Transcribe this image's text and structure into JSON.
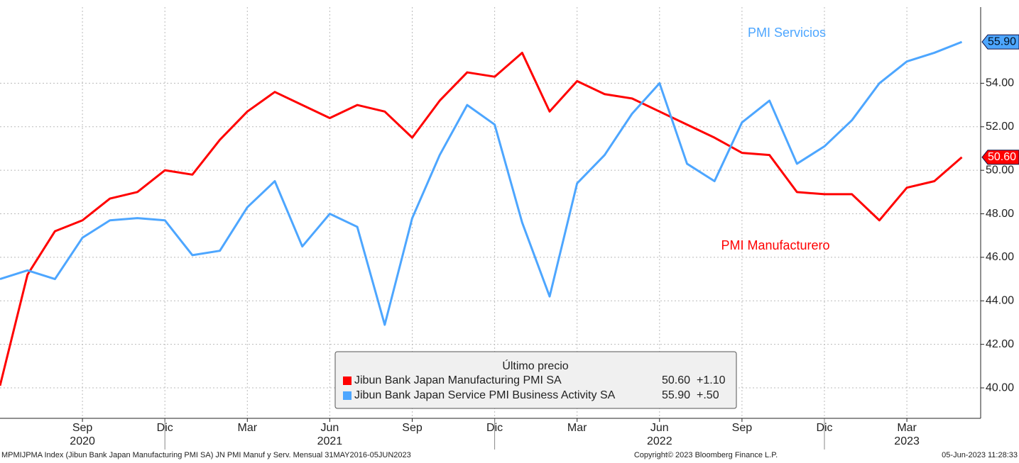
{
  "chart_data": {
    "type": "line",
    "categories": [
      null,
      null,
      null,
      "Sep",
      null,
      null,
      "Dic",
      null,
      null,
      "Mar",
      null,
      null,
      "Jun",
      null,
      null,
      "Sep",
      null,
      null,
      "Dic",
      null,
      null,
      "Mar",
      null,
      null,
      "Jun",
      null,
      null,
      "Sep",
      null,
      null,
      "Dic",
      null,
      null,
      "Mar",
      null,
      null
    ],
    "category_years": [
      null,
      null,
      null,
      "2020",
      null,
      null,
      null,
      null,
      null,
      null,
      null,
      null,
      "2021",
      null,
      null,
      null,
      null,
      null,
      null,
      null,
      null,
      null,
      null,
      null,
      "2022",
      null,
      null,
      null,
      null,
      null,
      null,
      null,
      null,
      "2023",
      null,
      null
    ],
    "series": [
      {
        "name": "Jibun Bank Japan Manufacturing PMI SA",
        "color": "#ff0000",
        "annotation": "PMI Manufacturero",
        "last_label": "50.60",
        "change": "+1.10",
        "values": [
          40.1,
          45.2,
          47.2,
          47.7,
          48.7,
          49.0,
          50.0,
          49.8,
          51.4,
          52.7,
          53.6,
          53.0,
          52.4,
          53.0,
          52.7,
          51.5,
          53.2,
          54.5,
          54.3,
          55.4,
          52.7,
          54.1,
          53.5,
          53.3,
          52.7,
          52.1,
          51.5,
          50.8,
          50.7,
          49.0,
          48.9,
          48.9,
          47.7,
          49.2,
          49.5,
          50.6
        ]
      },
      {
        "name": "Jibun Bank Japan Service PMI Business Activity SA",
        "color": "#4da6ff",
        "annotation": "PMI Servicios",
        "last_label": "55.90",
        "change": "+.50",
        "values": [
          45.0,
          45.4,
          45.0,
          46.9,
          47.7,
          47.8,
          47.7,
          46.1,
          46.3,
          48.3,
          49.5,
          46.5,
          48.0,
          47.4,
          42.9,
          47.8,
          50.7,
          53.0,
          52.1,
          47.6,
          44.2,
          49.4,
          50.7,
          52.6,
          54.0,
          50.3,
          49.5,
          52.2,
          53.2,
          50.3,
          51.1,
          52.3,
          54.0,
          55.0,
          55.4,
          55.9
        ]
      }
    ],
    "ylim": [
      38.6,
      57.5
    ],
    "yticks": [
      {
        "value": 40,
        "label": "40.00"
      },
      {
        "value": 42,
        "label": "42.00"
      },
      {
        "value": 44,
        "label": "44.00"
      },
      {
        "value": 46,
        "label": "46.00"
      },
      {
        "value": 48,
        "label": "48.00"
      },
      {
        "value": 50,
        "label": "50.00"
      },
      {
        "value": 52,
        "label": "52.00"
      },
      {
        "value": 54,
        "label": "54.00"
      }
    ],
    "grid": true,
    "legend_title": "Último precio",
    "footer_left": "MPMIJPMA Index (Jibun Bank Japan Manufacturing PMI SA) JN PMI Manuf y Serv. Mensual 31MAY2016-05JUN2023",
    "footer_center": "Copyright© 2023 Bloomberg Finance L.P.",
    "footer_right": "05-Jun-2023 11:28:33"
  }
}
